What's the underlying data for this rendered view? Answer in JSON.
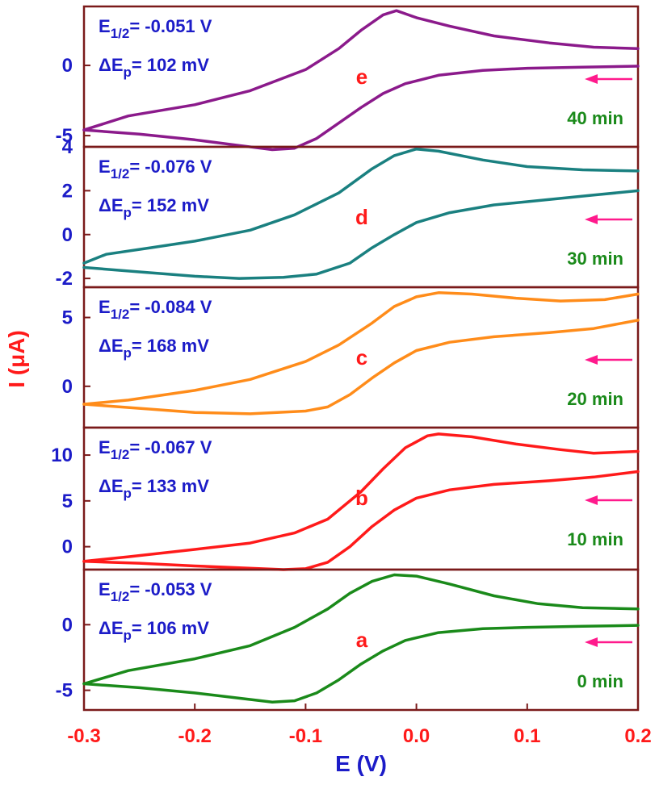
{
  "chart_data": {
    "type": "line",
    "xlabel": "E (V)",
    "ylabel": "I (μA)",
    "xlim": [
      -0.3,
      0.2
    ],
    "xticks": [
      -0.3,
      -0.2,
      -0.1,
      0.0,
      0.1,
      0.2
    ],
    "xtick_labels": [
      "-0.3",
      "-0.2",
      "-0.1",
      "0.0",
      "0.1",
      "0.2"
    ],
    "grid": false,
    "stacked_panels": true,
    "colors": {
      "axis_label_y": "#ff1a1a",
      "axis_label_x": "#1c1cc8",
      "tick_x": "#ff1a1a",
      "tick_y": "#1c1cc8",
      "frame": "#7a1a1a",
      "annotation_e": "#1c1cc8",
      "panel_letter": "#ff1a1a",
      "time": "#1a8a1a",
      "arrow": "#ff1a8c"
    },
    "panels": [
      {
        "letter": "e",
        "time": "40 min",
        "e_half": "-0.051 V",
        "delta_ep": "102 mV",
        "color": "#8b1a8b",
        "ylim": [
          -5.8,
          4.2
        ],
        "yticks": [
          -5,
          0
        ],
        "ytick_labels": [
          "-5",
          "0"
        ],
        "upper": [
          [
            -0.3,
            -4.6
          ],
          [
            -0.26,
            -3.6
          ],
          [
            -0.2,
            -2.8
          ],
          [
            -0.15,
            -1.8
          ],
          [
            -0.1,
            -0.3
          ],
          [
            -0.07,
            1.2
          ],
          [
            -0.05,
            2.5
          ],
          [
            -0.03,
            3.6
          ],
          [
            -0.018,
            3.9
          ],
          [
            0.0,
            3.4
          ],
          [
            0.03,
            2.8
          ],
          [
            0.07,
            2.1
          ],
          [
            0.12,
            1.6
          ],
          [
            0.16,
            1.3
          ],
          [
            0.2,
            1.2
          ]
        ],
        "lower": [
          [
            -0.3,
            -4.6
          ],
          [
            -0.25,
            -4.9
          ],
          [
            -0.2,
            -5.3
          ],
          [
            -0.16,
            -5.7
          ],
          [
            -0.13,
            -6.0
          ],
          [
            -0.11,
            -5.9
          ],
          [
            -0.09,
            -5.2
          ],
          [
            -0.07,
            -4.1
          ],
          [
            -0.05,
            -3.0
          ],
          [
            -0.03,
            -2.0
          ],
          [
            -0.01,
            -1.3
          ],
          [
            0.02,
            -0.7
          ],
          [
            0.06,
            -0.35
          ],
          [
            0.1,
            -0.2
          ],
          [
            0.15,
            -0.12
          ],
          [
            0.2,
            -0.05
          ]
        ]
      },
      {
        "letter": "d",
        "time": "30 min",
        "e_half": "-0.076 V",
        "delta_ep": "152 mV",
        "color": "#1a8080",
        "ylim": [
          -2.4,
          4.0
        ],
        "yticks": [
          -2,
          0,
          2,
          4
        ],
        "ytick_labels": [
          "-2",
          "0",
          "2",
          "4"
        ],
        "upper": [
          [
            -0.3,
            -1.3
          ],
          [
            -0.28,
            -0.9
          ],
          [
            -0.24,
            -0.6
          ],
          [
            -0.2,
            -0.3
          ],
          [
            -0.15,
            0.2
          ],
          [
            -0.11,
            0.9
          ],
          [
            -0.07,
            1.9
          ],
          [
            -0.04,
            3.0
          ],
          [
            -0.02,
            3.6
          ],
          [
            0.0,
            3.9
          ],
          [
            0.02,
            3.8
          ],
          [
            0.06,
            3.4
          ],
          [
            0.1,
            3.1
          ],
          [
            0.15,
            2.95
          ],
          [
            0.2,
            2.9
          ]
        ],
        "lower": [
          [
            -0.3,
            -1.5
          ],
          [
            -0.25,
            -1.7
          ],
          [
            -0.2,
            -1.9
          ],
          [
            -0.16,
            -2.0
          ],
          [
            -0.12,
            -1.95
          ],
          [
            -0.09,
            -1.8
          ],
          [
            -0.06,
            -1.3
          ],
          [
            -0.04,
            -0.6
          ],
          [
            -0.02,
            0.0
          ],
          [
            0.0,
            0.55
          ],
          [
            0.03,
            1.0
          ],
          [
            0.07,
            1.35
          ],
          [
            0.12,
            1.6
          ],
          [
            0.16,
            1.8
          ],
          [
            0.2,
            2.0
          ]
        ]
      },
      {
        "letter": "c",
        "time": "20 min",
        "e_half": "-0.084 V",
        "delta_ep": "168 mV",
        "color": "#ff8c1a",
        "ylim": [
          -3.0,
          7.2
        ],
        "yticks": [
          0,
          5
        ],
        "ytick_labels": [
          "0",
          "5"
        ],
        "upper": [
          [
            -0.3,
            -1.3
          ],
          [
            -0.26,
            -1.0
          ],
          [
            -0.2,
            -0.3
          ],
          [
            -0.15,
            0.5
          ],
          [
            -0.1,
            1.8
          ],
          [
            -0.07,
            3.0
          ],
          [
            -0.04,
            4.6
          ],
          [
            -0.02,
            5.8
          ],
          [
            0.0,
            6.5
          ],
          [
            0.02,
            6.8
          ],
          [
            0.05,
            6.7
          ],
          [
            0.09,
            6.4
          ],
          [
            0.13,
            6.2
          ],
          [
            0.17,
            6.3
          ],
          [
            0.2,
            6.7
          ]
        ],
        "lower": [
          [
            -0.3,
            -1.3
          ],
          [
            -0.25,
            -1.6
          ],
          [
            -0.2,
            -1.9
          ],
          [
            -0.15,
            -2.0
          ],
          [
            -0.1,
            -1.8
          ],
          [
            -0.08,
            -1.5
          ],
          [
            -0.06,
            -0.6
          ],
          [
            -0.04,
            0.6
          ],
          [
            -0.02,
            1.7
          ],
          [
            0.0,
            2.6
          ],
          [
            0.03,
            3.2
          ],
          [
            0.07,
            3.6
          ],
          [
            0.12,
            3.9
          ],
          [
            0.16,
            4.2
          ],
          [
            0.2,
            4.8
          ]
        ]
      },
      {
        "letter": "b",
        "time": "10 min",
        "e_half": "-0.067 V",
        "delta_ep": "133 mV",
        "color": "#ff1a1a",
        "ylim": [
          -2.5,
          13.0
        ],
        "yticks": [
          0,
          5,
          10
        ],
        "ytick_labels": [
          "0",
          "5",
          "10"
        ],
        "upper": [
          [
            -0.3,
            -1.6
          ],
          [
            -0.26,
            -1.1
          ],
          [
            -0.2,
            -0.3
          ],
          [
            -0.15,
            0.4
          ],
          [
            -0.11,
            1.5
          ],
          [
            -0.08,
            3.0
          ],
          [
            -0.05,
            6.0
          ],
          [
            -0.03,
            8.5
          ],
          [
            -0.01,
            10.8
          ],
          [
            0.01,
            12.1
          ],
          [
            0.02,
            12.3
          ],
          [
            0.05,
            12.0
          ],
          [
            0.09,
            11.2
          ],
          [
            0.13,
            10.6
          ],
          [
            0.16,
            10.2
          ],
          [
            0.2,
            10.4
          ]
        ],
        "lower": [
          [
            -0.3,
            -1.6
          ],
          [
            -0.25,
            -1.8
          ],
          [
            -0.2,
            -2.1
          ],
          [
            -0.16,
            -2.3
          ],
          [
            -0.12,
            -2.5
          ],
          [
            -0.1,
            -2.4
          ],
          [
            -0.08,
            -1.7
          ],
          [
            -0.06,
            0.0
          ],
          [
            -0.04,
            2.2
          ],
          [
            -0.02,
            4.0
          ],
          [
            0.0,
            5.3
          ],
          [
            0.03,
            6.2
          ],
          [
            0.07,
            6.8
          ],
          [
            0.12,
            7.2
          ],
          [
            0.16,
            7.6
          ],
          [
            0.2,
            8.2
          ]
        ]
      },
      {
        "letter": "a",
        "time": "0 min",
        "e_half": "-0.053 V",
        "delta_ep": "106 mV",
        "color": "#1a8a1a",
        "ylim": [
          -6.5,
          4.2
        ],
        "yticks": [
          -5,
          0
        ],
        "ytick_labels": [
          "-5",
          "0"
        ],
        "upper": [
          [
            -0.3,
            -4.5
          ],
          [
            -0.26,
            -3.5
          ],
          [
            -0.2,
            -2.6
          ],
          [
            -0.15,
            -1.6
          ],
          [
            -0.11,
            -0.2
          ],
          [
            -0.08,
            1.2
          ],
          [
            -0.06,
            2.4
          ],
          [
            -0.04,
            3.3
          ],
          [
            -0.02,
            3.8
          ],
          [
            0.0,
            3.7
          ],
          [
            0.03,
            3.1
          ],
          [
            0.07,
            2.2
          ],
          [
            0.11,
            1.6
          ],
          [
            0.15,
            1.3
          ],
          [
            0.2,
            1.2
          ]
        ],
        "lower": [
          [
            -0.3,
            -4.5
          ],
          [
            -0.25,
            -4.8
          ],
          [
            -0.2,
            -5.2
          ],
          [
            -0.16,
            -5.6
          ],
          [
            -0.13,
            -5.9
          ],
          [
            -0.11,
            -5.8
          ],
          [
            -0.09,
            -5.2
          ],
          [
            -0.07,
            -4.2
          ],
          [
            -0.05,
            -3.0
          ],
          [
            -0.03,
            -2.0
          ],
          [
            -0.01,
            -1.2
          ],
          [
            0.02,
            -0.6
          ],
          [
            0.06,
            -0.3
          ],
          [
            0.1,
            -0.2
          ],
          [
            0.15,
            -0.12
          ],
          [
            0.2,
            -0.05
          ]
        ]
      }
    ]
  }
}
